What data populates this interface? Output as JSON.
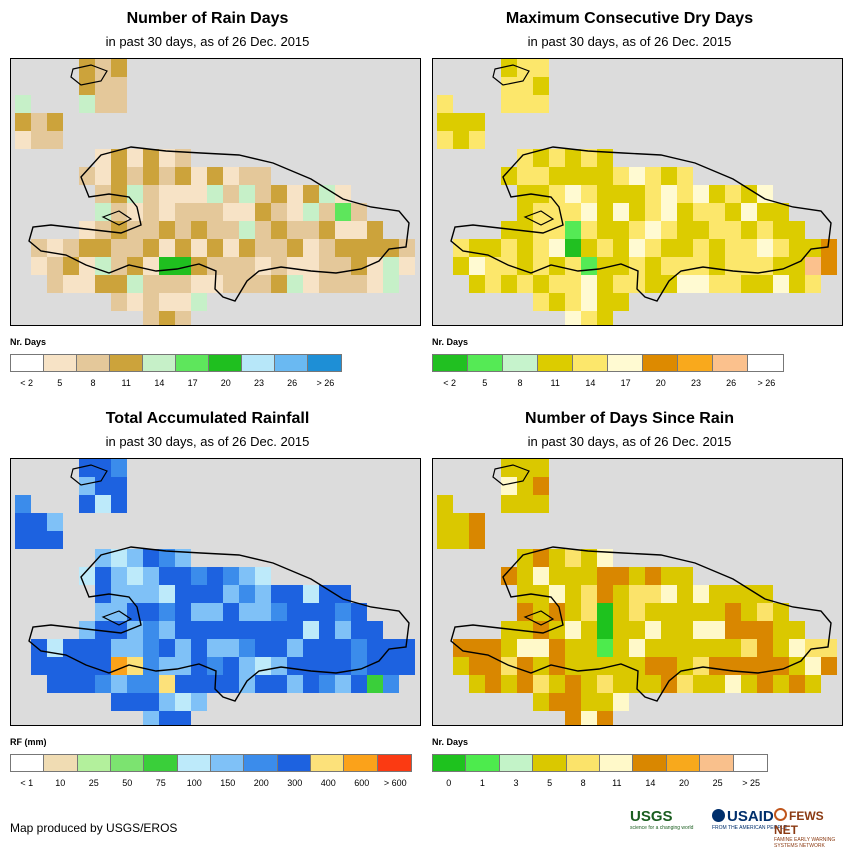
{
  "panels": [
    {
      "id": "rain-days",
      "title": "Number of Rain Days",
      "subtitle": "in past 30 days, as of 26 Dec. 2015",
      "legend": {
        "label": "Nr. Days",
        "colors": [
          "#ffffff",
          "#f7e3c6",
          "#e4c89a",
          "#cca33b",
          "#c6f0c8",
          "#5ee65c",
          "#1fbf1f",
          "#b7e7f9",
          "#6ab9f2",
          "#1e8fd6"
        ],
        "ticks": [
          "< 2",
          "5",
          "8",
          "11",
          "14",
          "17",
          "20",
          "23",
          "26",
          "> 26"
        ]
      }
    },
    {
      "id": "dry-days",
      "title": "Maximum Consecutive Dry Days",
      "subtitle": "in past 30 days, as of 26 Dec. 2015",
      "legend": {
        "label": "Nr. Days",
        "colors": [
          "#21c021",
          "#55ea55",
          "#c6f3cc",
          "#dccc00",
          "#fce76b",
          "#fffad2",
          "#dd8a00",
          "#f9a91c",
          "#fbc18d",
          "#ffffff"
        ],
        "ticks": [
          "< 2",
          "5",
          "8",
          "11",
          "14",
          "17",
          "20",
          "23",
          "26",
          "> 26"
        ]
      }
    },
    {
      "id": "rainfall",
      "title": "Total Accumulated Rainfall",
      "subtitle": "in past 30 days, as of 26 Dec. 2015",
      "legend": {
        "label": "RF (mm)",
        "colors": [
          "#ffffff",
          "#f0dcb3",
          "#b3f09c",
          "#7ce370",
          "#3acf3a",
          "#bdeafa",
          "#7fc1f7",
          "#3b8ceb",
          "#1d62e0",
          "#fce17a",
          "#fba21a",
          "#fb3a12"
        ],
        "ticks": [
          "< 1",
          "10",
          "25",
          "50",
          "75",
          "100",
          "150",
          "200",
          "300",
          "400",
          "600",
          "> 600"
        ]
      }
    },
    {
      "id": "days-since-rain",
      "title": "Number of Days Since Rain",
      "subtitle": "in past 30 days, as of 26 Dec. 2015",
      "legend": {
        "label": "Nr. Days",
        "colors": [
          "#1ec21e",
          "#4deb4d",
          "#c3f3c8",
          "#dac800",
          "#fbe36a",
          "#fff9c9",
          "#d98700",
          "#f8a91c",
          "#f9c08c",
          "#ffffff"
        ],
        "ticks": [
          "0",
          "1",
          "3",
          "5",
          "8",
          "11",
          "14",
          "20",
          "25",
          "> 25"
        ]
      }
    }
  ],
  "credit": "Map produced by USGS/EROS",
  "logos": {
    "usgs": "USGS",
    "usgs_tag": "science for a changing world",
    "usaid": "USAID",
    "usaid_tag": "FROM THE AMERICAN PEOPLE",
    "fews": "FEWS NET",
    "fews_tag": "FAMINE EARLY WARNING SYSTEMS NETWORK"
  }
}
